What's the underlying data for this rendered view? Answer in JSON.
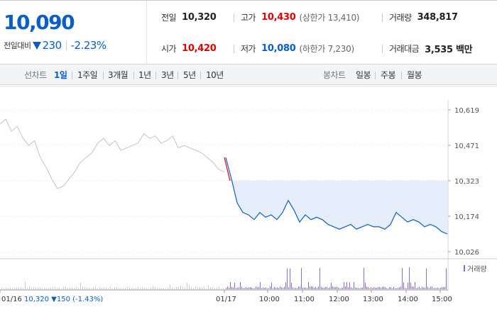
{
  "quote": {
    "current_price": "10,090",
    "change_label": "전일대비",
    "change_value": "230",
    "change_percent": "-2.23%",
    "direction_icon": "down-triangle-icon"
  },
  "stats": {
    "prev_close_label": "전일",
    "prev_close": "10,320",
    "open_label": "시가",
    "open": "10,420",
    "high_label": "고가",
    "high": "10,430",
    "upper_limit": "(상한가 13,410)",
    "low_label": "저가",
    "low": "10,080",
    "lower_limit": "(하한가 7,230)",
    "volume_label": "거래량",
    "volume": "348,817",
    "value_label": "거래대금",
    "value": "3,535 백만"
  },
  "period_bar": {
    "line_label": "선차트",
    "line_periods": [
      "1일",
      "1주일",
      "3개월",
      "1년",
      "3년",
      "5년",
      "10년"
    ],
    "active_line_period": "1일",
    "candle_label": "봉차트",
    "candle_periods": [
      "일봉",
      "주봉",
      "월봉"
    ]
  },
  "colors": {
    "accent_blue": "#0a5ecb",
    "up_red": "#e00000",
    "volume_purple": "#8b6fc3",
    "area_fill": "#e6eefb"
  },
  "chart_data": {
    "type": "line",
    "y_ticks": [
      "10,619",
      "10,471",
      "10,323",
      "10,174",
      "10,026"
    ],
    "ylim": [
      10026,
      10619
    ],
    "prev_close_line": 10323,
    "x_ticks": [
      "01/16",
      "01/17",
      "10:00",
      "11:00",
      "12:00",
      "13:00",
      "14:00",
      "15:00"
    ],
    "previous_day_label": "01/16  10,320 ▼150 (-1.43%)",
    "volume_legend": "거래량",
    "series": [
      {
        "day": "previous",
        "values": [
          10560,
          10580,
          10530,
          10550,
          10500,
          10470,
          10490,
          10420,
          10380,
          10330,
          10290,
          10300,
          10330,
          10360,
          10400,
          10420,
          10440,
          10480,
          10500,
          10470,
          10490,
          10450,
          10460,
          10470,
          10480,
          10520,
          10500,
          10510,
          10480,
          10490,
          10510,
          10460,
          10470,
          10460,
          10450,
          10440,
          10420,
          10400,
          10370,
          10360
        ]
      },
      {
        "day": "today",
        "values": [
          10420,
          10330,
          10230,
          10190,
          10180,
          10160,
          10190,
          10170,
          10180,
          10160,
          10190,
          10240,
          10200,
          10150,
          10180,
          10160,
          10170,
          10160,
          10140,
          10130,
          10120,
          10130,
          10140,
          10120,
          10130,
          10140,
          10130,
          10130,
          10120,
          10140,
          10190,
          10170,
          10150,
          10160,
          10150,
          10130,
          10140,
          10130,
          10110,
          10100
        ]
      }
    ]
  }
}
